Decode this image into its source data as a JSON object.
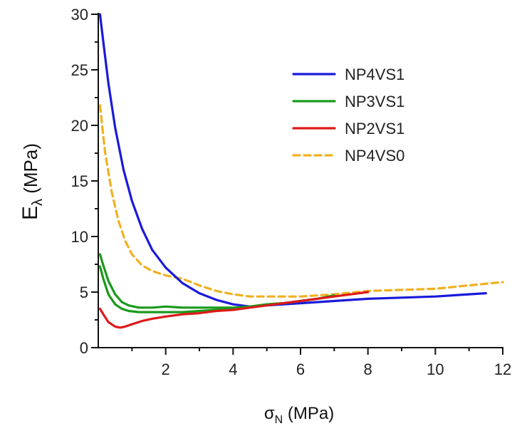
{
  "chart_data": {
    "type": "line",
    "title": "",
    "xlabel": {
      "main": "σ",
      "sub": "N",
      "rest": " (MPa)"
    },
    "ylabel": {
      "main": "E",
      "sub": "λ",
      "rest": " (MPa)"
    },
    "xlim": [
      0,
      12
    ],
    "ylim": [
      0,
      30
    ],
    "xticks": [
      2,
      4,
      6,
      8,
      10,
      12
    ],
    "yticks": [
      0,
      5,
      10,
      15,
      20,
      25,
      30
    ],
    "grid": false,
    "legend": "top-right",
    "series": [
      {
        "name": "NP4VS1",
        "color": "#1a1adb",
        "dash": "solid",
        "x": [
          0.05,
          0.15,
          0.3,
          0.5,
          0.75,
          1.0,
          1.3,
          1.6,
          2.0,
          2.5,
          3.0,
          3.5,
          4.0,
          4.5,
          5.0,
          6.0,
          7.0,
          8.0,
          9.0,
          10.0,
          11.0,
          11.5
        ],
        "y": [
          30.0,
          27.5,
          23.8,
          19.8,
          16.0,
          13.2,
          10.7,
          8.8,
          7.2,
          5.8,
          4.9,
          4.3,
          3.9,
          3.7,
          3.8,
          4.0,
          4.2,
          4.4,
          4.5,
          4.6,
          4.8,
          4.9
        ]
      },
      {
        "name": "NP3VS1",
        "color": "#1a9a1a",
        "dash": "solid",
        "x": [
          0.05,
          0.15,
          0.3,
          0.5,
          0.7,
          0.9,
          1.2,
          1.6,
          2.0,
          2.5,
          3.0,
          3.5,
          4.0,
          4.5,
          5.0,
          5.5,
          6.0,
          6.5,
          7.0
        ],
        "y": [
          8.4,
          7.4,
          6.0,
          4.8,
          4.1,
          3.8,
          3.6,
          3.6,
          3.7,
          3.6,
          3.6,
          3.6,
          3.6,
          3.7,
          3.9,
          4.0,
          4.2,
          4.4,
          4.7
        ]
      },
      {
        "name": "NP3VS1",
        "color": "#1a9a1a",
        "dash": "solid",
        "x": [
          0.05,
          0.15,
          0.3,
          0.5,
          0.7,
          0.9,
          1.2,
          1.6,
          2.0,
          2.5,
          3.0,
          3.5,
          4.0,
          4.5,
          5.0,
          5.5,
          6.0,
          6.5,
          7.0
        ],
        "y": [
          7.3,
          6.2,
          4.8,
          3.9,
          3.5,
          3.3,
          3.2,
          3.2,
          3.2,
          3.2,
          3.3,
          3.4,
          3.5,
          3.7,
          3.9,
          4.0,
          4.2,
          4.4,
          4.7
        ]
      },
      {
        "name": "NP2VS1",
        "color": "#dd1a1a",
        "dash": "solid",
        "x": [
          0.05,
          0.15,
          0.3,
          0.5,
          0.65,
          0.8,
          1.0,
          1.3,
          1.6,
          2.0,
          2.5,
          3.0,
          3.5,
          4.0,
          4.5,
          5.0,
          5.5,
          6.0,
          7.0,
          8.0
        ],
        "y": [
          3.5,
          3.0,
          2.3,
          1.9,
          1.8,
          1.9,
          2.1,
          2.4,
          2.6,
          2.8,
          3.0,
          3.1,
          3.3,
          3.4,
          3.6,
          3.8,
          4.0,
          4.2,
          4.6,
          5.0
        ]
      },
      {
        "name": "NP4VS0",
        "color": "#f0b020",
        "dash": "dashed",
        "x": [
          0.05,
          0.2,
          0.4,
          0.6,
          0.8,
          1.0,
          1.3,
          1.6,
          2.0,
          2.5,
          3.0,
          3.5,
          4.0,
          4.5,
          5.0,
          6.0,
          7.0,
          8.0,
          9.0,
          10.0,
          11.0,
          12.0
        ],
        "y": [
          21.8,
          17.6,
          14.0,
          11.4,
          9.6,
          8.4,
          7.4,
          6.9,
          6.5,
          6.2,
          5.6,
          5.1,
          4.8,
          4.6,
          4.6,
          4.6,
          4.8,
          5.1,
          5.2,
          5.3,
          5.6,
          5.9
        ]
      }
    ]
  }
}
